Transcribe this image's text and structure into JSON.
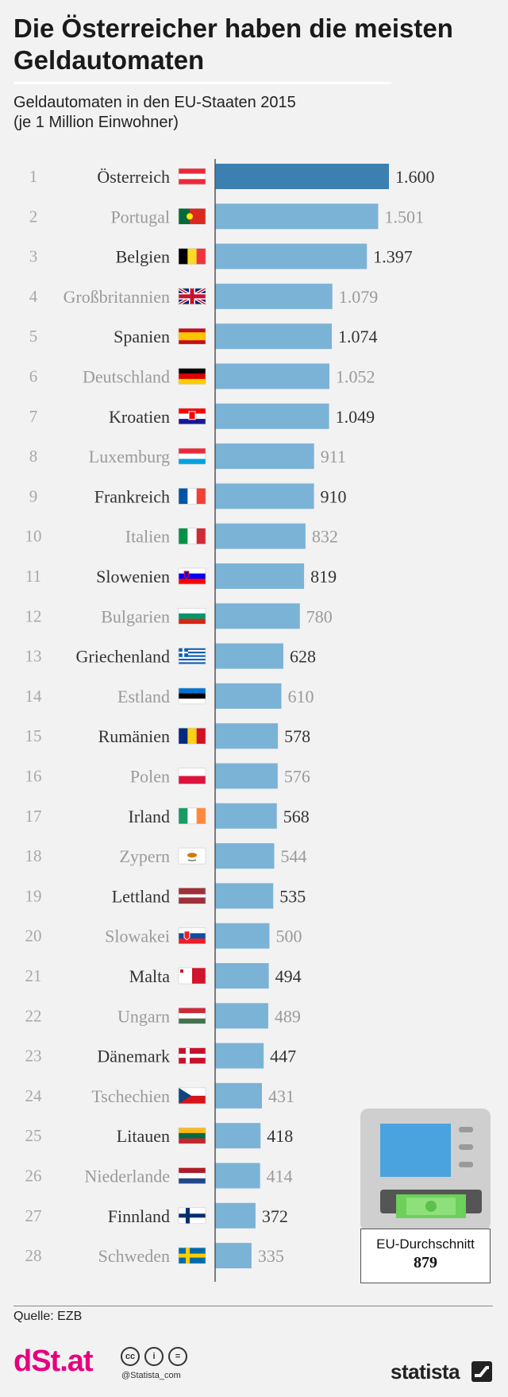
{
  "title": "Die Österreicher haben die meisten Geldautomaten",
  "subtitle_line1": "Geldautomaten in den EU-Staaten 2015",
  "subtitle_line2": "(je 1 Million Einwohner)",
  "colors": {
    "bar": "#7bb3d6",
    "bar_highlight": "#3c7fb1",
    "axis": "#555555"
  },
  "chart_data": {
    "type": "bar",
    "orientation": "horizontal",
    "categories": [
      "Österreich",
      "Portugal",
      "Belgien",
      "Großbritannien",
      "Spanien",
      "Deutschland",
      "Kroatien",
      "Luxemburg",
      "Frankreich",
      "Italien",
      "Slowenien",
      "Bulgarien",
      "Griechenland",
      "Estland",
      "Rumänien",
      "Polen",
      "Irland",
      "Zypern",
      "Lettland",
      "Slowakei",
      "Malta",
      "Ungarn",
      "Dänemark",
      "Tschechien",
      "Litauen",
      "Niederlande",
      "Finnland",
      "Schweden"
    ],
    "ranks": [
      "1",
      "2",
      "3",
      "4",
      "5",
      "6",
      "7",
      "8",
      "9",
      "10",
      "11",
      "12",
      "13",
      "14",
      "15",
      "16",
      "17",
      "18",
      "19",
      "20",
      "21",
      "22",
      "23",
      "24",
      "25",
      "26",
      "27",
      "28"
    ],
    "values": [
      1600,
      1501,
      1397,
      1079,
      1074,
      1052,
      1049,
      911,
      910,
      832,
      819,
      780,
      628,
      610,
      578,
      576,
      568,
      544,
      535,
      500,
      494,
      489,
      447,
      431,
      418,
      414,
      372,
      335
    ],
    "value_labels": [
      "1.600",
      "1.501",
      "1.397",
      "1.079",
      "1.074",
      "1.052",
      "1.049",
      "911",
      "910",
      "832",
      "819",
      "780",
      "628",
      "610",
      "578",
      "576",
      "568",
      "544",
      "535",
      "500",
      "494",
      "489",
      "447",
      "431",
      "418",
      "414",
      "372",
      "335"
    ],
    "flag_icons": [
      "flag-at-icon",
      "flag-pt-icon",
      "flag-be-icon",
      "flag-gb-icon",
      "flag-es-icon",
      "flag-de-icon",
      "flag-hr-icon",
      "flag-lu-icon",
      "flag-fr-icon",
      "flag-it-icon",
      "flag-si-icon",
      "flag-bg-icon",
      "flag-gr-icon",
      "flag-ee-icon",
      "flag-ro-icon",
      "flag-pl-icon",
      "flag-ie-icon",
      "flag-cy-icon",
      "flag-lv-icon",
      "flag-sk-icon",
      "flag-mt-icon",
      "flag-hu-icon",
      "flag-dk-icon",
      "flag-cz-icon",
      "flag-lt-icon",
      "flag-nl-icon",
      "flag-fi-icon",
      "flag-se-icon"
    ],
    "highlight_category": "Österreich",
    "xlim": [
      0,
      1600
    ],
    "grid": false,
    "reference": {
      "label": "EU-Durchschnitt",
      "value_label": "879"
    }
  },
  "footer": {
    "source": "Quelle: EZB",
    "brand": "dSt.at",
    "handle": "@Statista_com",
    "statista": "statista",
    "license_icons": [
      "cc-icon",
      "by-icon",
      "nd-icon"
    ]
  }
}
